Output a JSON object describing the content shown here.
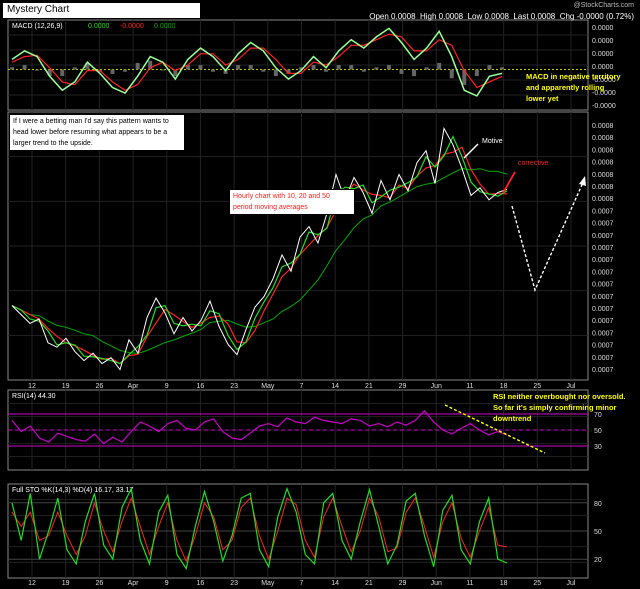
{
  "header": {
    "chart_title": "Mystery Chart",
    "watermark": "@StockCharts.com",
    "quote": {
      "open_label": "Open",
      "open": "0.0008",
      "high_label": "High",
      "high": "0.0008",
      "low_label": "Low",
      "low": "0.0008",
      "last_label": "Last",
      "last": "0.0008",
      "chg_label": "Chg",
      "chg": "-0.0000 (0.72%)"
    }
  },
  "annotations": {
    "betting_note": "If I were a betting man I'd say this pattern wants to head lower before resuming what appears to be a larger trend to the upside.",
    "hourly_note": "Hourly chart with 10, 20 and 50 period moving averages",
    "motive": "Motive",
    "corrective": "corrective",
    "macd_note": "MACD in negative territory and apparently rolling lower yet",
    "rsi_note": "RSI neither overbought nor oversold. So far it's simply confirming minor downtrend"
  },
  "colors": {
    "background": "#000000",
    "price": "#ffffff",
    "ma10": "#22dd22",
    "ma20": "#ff2222",
    "ma50": "#00aa00",
    "rsi": "#cc00cc",
    "sto_k": "#22dd22",
    "sto_d": "#ff2222",
    "arrow": "#ffffff",
    "trend_line": "#ffff00"
  },
  "chart_data": [
    {
      "type": "line",
      "panel": "macd",
      "legend": "MACD (12,26,9)",
      "legend_values": [
        "0.0000",
        "-0.0000",
        "0.0000"
      ],
      "y_ticks": [
        "0.0000",
        "0.0000",
        "0.0000",
        "0.0000",
        "-0.0000",
        "-0.0000",
        "-0.0000"
      ],
      "series": [
        {
          "values": [
            0.2,
            0.5,
            0.3,
            -0.4,
            -0.9,
            -0.6,
            0.1,
            -0.3,
            -0.8,
            -1.0,
            -0.4,
            0.3,
            0.1,
            -0.5,
            0.2,
            0.6,
            0.3,
            -0.2,
            0.4,
            0.8,
            0.5,
            -0.1,
            -0.5,
            -0.2,
            0.3,
            -0.1,
            0.5,
            0.9,
            0.6,
            1.0,
            1.3,
            0.8,
            0.2,
            0.6,
            1.2,
            0.3,
            -0.9,
            -1.1,
            -0.4,
            -0.3
          ]
        },
        {
          "values": [
            0.1,
            0.3,
            0.35,
            -0.1,
            -0.6,
            -0.7,
            -0.2,
            -0.2,
            -0.6,
            -0.9,
            -0.7,
            -0.1,
            0.1,
            -0.2,
            0.0,
            0.4,
            0.4,
            0.0,
            0.2,
            0.6,
            0.6,
            0.2,
            -0.3,
            -0.3,
            0.1,
            0.0,
            0.3,
            0.7,
            0.7,
            0.9,
            1.1,
            1.0,
            0.5,
            0.5,
            0.9,
            0.7,
            -0.2,
            -0.8,
            -0.6,
            -0.4
          ]
        }
      ]
    },
    {
      "type": "line",
      "panel": "price",
      "x_labels": [
        "12",
        "19",
        "26",
        "Apr",
        "9",
        "16",
        "23",
        "May",
        "7",
        "14",
        "21",
        "29",
        "Jun",
        "11",
        "18",
        "25",
        "Jul"
      ],
      "y_ticks": [
        "0.0008",
        "0.0008",
        "0.0008",
        "0.0008",
        "0.0008",
        "0.0008",
        "0.0008",
        "0.0007",
        "0.0007",
        "0.0007",
        "0.0007",
        "0.0007",
        "0.0007",
        "0.0007",
        "0.0007",
        "0.0007",
        "0.0007",
        "0.0007",
        "0.0007",
        "0.0007",
        "0.0007"
      ],
      "series": [
        {
          "values": [
            5.0,
            4.4,
            3.8,
            4.1,
            2.5,
            2.2,
            2.8,
            1.9,
            1.3,
            1.8,
            1.1,
            1.5,
            0.7,
            2.7,
            1.8,
            4.2,
            5.5,
            4.5,
            3.1,
            4.2,
            3.3,
            4.0,
            5.3,
            3.6,
            2.4,
            1.7,
            3.4,
            4.9,
            5.6,
            6.8,
            8.4,
            7.3,
            9.6,
            10.3,
            9.2,
            11.2,
            13.8,
            12.1,
            13.6,
            12.6,
            11.2,
            13.4,
            12.1,
            13.8,
            12.7,
            14.6,
            15.4,
            13.2,
            16.9,
            15.8,
            14.2,
            12.4,
            12.9,
            12.1,
            12.6,
            12.8
          ]
        }
      ]
    },
    {
      "type": "line",
      "panel": "rsi",
      "legend": "RSI(14) 44.30",
      "y_ticks": [
        "70",
        "50",
        "30"
      ],
      "series": [
        {
          "values": [
            62,
            48,
            55,
            40,
            35,
            46,
            42,
            38,
            36,
            45,
            33,
            41,
            35,
            48,
            60,
            55,
            48,
            58,
            62,
            52,
            50,
            60,
            64,
            48,
            40,
            38,
            46,
            55,
            58,
            54,
            65,
            60,
            58,
            66,
            62,
            60,
            58,
            64,
            62,
            55,
            58,
            54,
            60,
            56,
            62,
            74,
            60,
            50,
            45,
            52,
            58,
            50,
            44,
            48,
            44
          ]
        }
      ]
    },
    {
      "type": "line",
      "panel": "full_stochastics",
      "legend": "Full STO %K(14,3) %D(4) 16.17, 33.17",
      "legend_k": "16.17",
      "legend_d": "33.17",
      "y_ticks": [
        "80",
        "50",
        "20"
      ],
      "series": [
        {
          "values": [
            80,
            40,
            90,
            20,
            50,
            85,
            30,
            15,
            60,
            90,
            35,
            20,
            75,
            95,
            40,
            15,
            70,
            88,
            25,
            10,
            55,
            92,
            60,
            18,
            45,
            85,
            90,
            30,
            12,
            65,
            95,
            70,
            25,
            15,
            80,
            90,
            40,
            20,
            60,
            94,
            55,
            15,
            35,
            82,
            90,
            45,
            12,
            72,
            88,
            30,
            15,
            60,
            85,
            20,
            16
          ]
        },
        {
          "values": [
            70,
            55,
            70,
            40,
            45,
            70,
            45,
            25,
            45,
            80,
            50,
            28,
            60,
            85,
            55,
            25,
            55,
            80,
            40,
            18,
            45,
            80,
            65,
            30,
            40,
            75,
            85,
            45,
            20,
            50,
            85,
            78,
            40,
            22,
            65,
            85,
            55,
            28,
            50,
            85,
            65,
            28,
            32,
            70,
            85,
            55,
            22,
            60,
            80,
            42,
            22,
            50,
            75,
            35,
            33
          ]
        }
      ]
    }
  ]
}
